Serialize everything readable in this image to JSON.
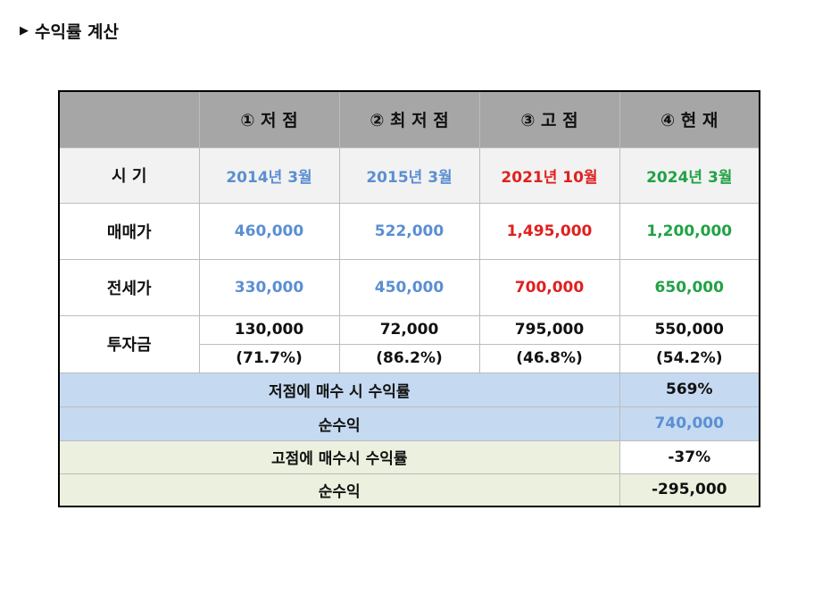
{
  "heading": {
    "marker": "▶",
    "title": "수익률 계산"
  },
  "table": {
    "header": [
      "",
      "① 저 점",
      "② 최 저 점",
      "③ 고 점",
      "④ 현 재"
    ],
    "period": {
      "label": "시 기",
      "values": [
        "2014년 3월",
        "2015년 3월",
        "2021년 10월",
        "2024년 3월"
      ]
    },
    "sale_price": {
      "label": "매매가",
      "values": [
        "460,000",
        "522,000",
        "1,495,000",
        "1,200,000"
      ]
    },
    "jeonse_price": {
      "label": "전세가",
      "values": [
        "330,000",
        "450,000",
        "700,000",
        "650,000"
      ]
    },
    "investment": {
      "label": "투자금",
      "amounts": [
        "130,000",
        "72,000",
        "795,000",
        "550,000"
      ],
      "ratios": [
        "(71.7%)",
        "(86.2%)",
        "(46.8%)",
        "(54.2%)"
      ]
    },
    "summary_low": [
      {
        "label": "저점에 매수 시 수익률",
        "value": "569%"
      },
      {
        "label": "순수익",
        "value": "740,000"
      }
    ],
    "summary_high": [
      {
        "label": "고점에 매수시 수익률",
        "value": "-37%"
      },
      {
        "label": "순수익",
        "value": "-295,000"
      }
    ],
    "colors": {
      "low": "#5b8fd2",
      "high": "#e02020",
      "current": "#21a246",
      "header_bg": "#a6a6a6",
      "summary_low_bg": "#c5d9f1",
      "summary_high_bg": "#ebf1de"
    }
  }
}
